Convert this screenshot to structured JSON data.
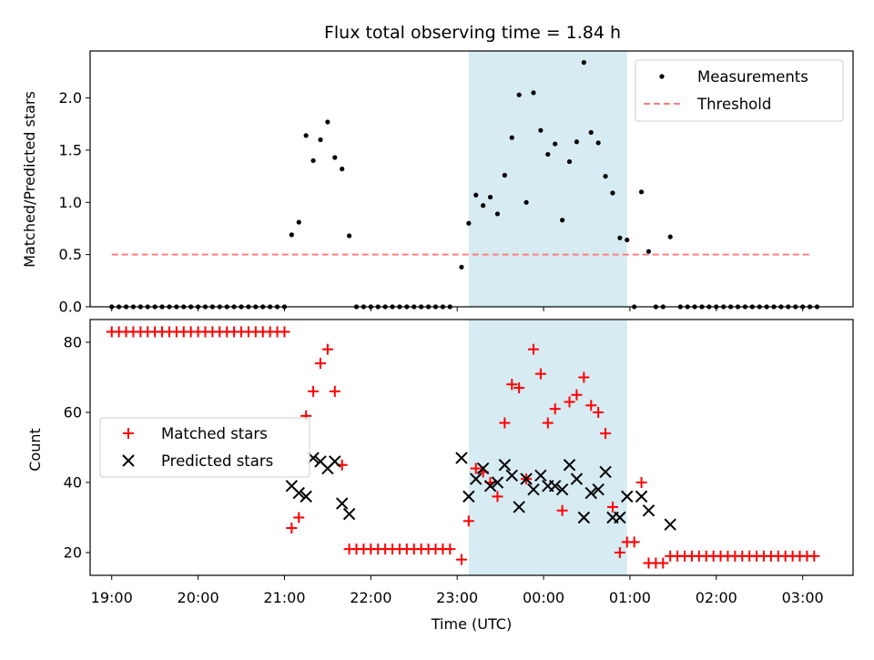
{
  "chart_data": [
    {
      "type": "scatter",
      "title": "Flux total observing time = 1.84 h",
      "xlabel": "",
      "ylabel": "Matched/Predicted stars",
      "ylim": [
        0,
        2.45
      ],
      "xlim": [
        "18:45",
        "03:35"
      ],
      "yticks": [
        "0.0",
        "0.5",
        "1.0",
        "1.5",
        "2.0"
      ],
      "highlight_span": {
        "start": "23:08",
        "end": "00:58",
        "color": "#add8e6"
      },
      "legend": {
        "placement": "top-right",
        "entries": [
          "Measurements",
          "Threshold"
        ]
      },
      "threshold": {
        "name": "Threshold",
        "value": 0.5,
        "x_range": [
          "19:00",
          "03:05"
        ],
        "color": "#ff7f7f",
        "style": "dashed"
      },
      "series": [
        {
          "name": "Measurements",
          "color": "#000000",
          "points": [
            [
              "19:00",
              0
            ],
            [
              "19:05",
              0
            ],
            [
              "19:10",
              0
            ],
            [
              "19:15",
              0
            ],
            [
              "19:20",
              0
            ],
            [
              "19:25",
              0
            ],
            [
              "19:30",
              0
            ],
            [
              "19:35",
              0
            ],
            [
              "19:40",
              0
            ],
            [
              "19:45",
              0
            ],
            [
              "19:50",
              0
            ],
            [
              "19:55",
              0
            ],
            [
              "20:00",
              0
            ],
            [
              "20:05",
              0
            ],
            [
              "20:10",
              0
            ],
            [
              "20:15",
              0
            ],
            [
              "20:20",
              0
            ],
            [
              "20:25",
              0
            ],
            [
              "20:30",
              0
            ],
            [
              "20:35",
              0
            ],
            [
              "20:40",
              0
            ],
            [
              "20:45",
              0
            ],
            [
              "20:50",
              0
            ],
            [
              "20:55",
              0
            ],
            [
              "21:00",
              0
            ],
            [
              "21:05",
              0.69
            ],
            [
              "21:10",
              0.81
            ],
            [
              "21:15",
              1.64
            ],
            [
              "21:20",
              1.4
            ],
            [
              "21:25",
              1.6
            ],
            [
              "21:30",
              1.77
            ],
            [
              "21:35",
              1.43
            ],
            [
              "21:40",
              1.32
            ],
            [
              "21:45",
              0.68
            ],
            [
              "21:50",
              0
            ],
            [
              "21:55",
              0
            ],
            [
              "22:00",
              0
            ],
            [
              "22:05",
              0
            ],
            [
              "22:10",
              0
            ],
            [
              "22:15",
              0
            ],
            [
              "22:20",
              0
            ],
            [
              "22:25",
              0
            ],
            [
              "22:30",
              0
            ],
            [
              "22:35",
              0
            ],
            [
              "22:40",
              0
            ],
            [
              "22:45",
              0
            ],
            [
              "22:50",
              0
            ],
            [
              "22:55",
              0
            ],
            [
              "23:03",
              0.38
            ],
            [
              "23:08",
              0.8
            ],
            [
              "23:13",
              1.07
            ],
            [
              "23:18",
              0.97
            ],
            [
              "23:23",
              1.05
            ],
            [
              "23:28",
              0.89
            ],
            [
              "23:33",
              1.26
            ],
            [
              "23:38",
              1.62
            ],
            [
              "23:43",
              2.03
            ],
            [
              "23:48",
              1.0
            ],
            [
              "23:53",
              2.05
            ],
            [
              "23:58",
              1.69
            ],
            [
              "00:03",
              1.46
            ],
            [
              "00:08",
              1.56
            ],
            [
              "00:13",
              0.83
            ],
            [
              "00:18",
              1.39
            ],
            [
              "00:23",
              1.58
            ],
            [
              "00:28",
              2.34
            ],
            [
              "00:33",
              1.67
            ],
            [
              "00:38",
              1.57
            ],
            [
              "00:43",
              1.25
            ],
            [
              "00:48",
              1.09
            ],
            [
              "00:53",
              0.66
            ],
            [
              "00:58",
              0.64
            ],
            [
              "01:03",
              0
            ],
            [
              "01:08",
              1.1
            ],
            [
              "01:13",
              0.53
            ],
            [
              "01:18",
              0
            ],
            [
              "01:23",
              0
            ],
            [
              "01:28",
              0.67
            ],
            [
              "01:35",
              0
            ],
            [
              "01:40",
              0
            ],
            [
              "01:45",
              0
            ],
            [
              "01:50",
              0
            ],
            [
              "01:55",
              0
            ],
            [
              "02:00",
              0
            ],
            [
              "02:05",
              0
            ],
            [
              "02:10",
              0
            ],
            [
              "02:15",
              0
            ],
            [
              "02:20",
              0
            ],
            [
              "02:25",
              0
            ],
            [
              "02:30",
              0
            ],
            [
              "02:35",
              0
            ],
            [
              "02:40",
              0
            ],
            [
              "02:45",
              0
            ],
            [
              "02:50",
              0
            ],
            [
              "02:55",
              0
            ],
            [
              "03:00",
              0
            ],
            [
              "03:05",
              0
            ],
            [
              "03:10",
              0
            ]
          ]
        }
      ]
    },
    {
      "type": "scatter",
      "title": "",
      "xlabel": "Time (UTC)",
      "ylabel": "Count",
      "ylim": [
        13.5,
        86.5
      ],
      "xlim": [
        "18:45",
        "03:35"
      ],
      "yticks": [
        "20",
        "40",
        "60",
        "80"
      ],
      "xticks": [
        "19:00",
        "20:00",
        "21:00",
        "22:00",
        "23:00",
        "00:00",
        "01:00",
        "02:00",
        "03:00"
      ],
      "highlight_span": {
        "start": "23:08",
        "end": "00:58",
        "color": "#add8e6"
      },
      "legend": {
        "placement": "center-left",
        "entries": [
          "Matched stars",
          "Predicted stars"
        ]
      },
      "series": [
        {
          "name": "Matched stars",
          "marker": "+",
          "color": "#ff0000",
          "points": [
            [
              "19:00",
              83
            ],
            [
              "19:05",
              83
            ],
            [
              "19:10",
              83
            ],
            [
              "19:15",
              83
            ],
            [
              "19:20",
              83
            ],
            [
              "19:25",
              83
            ],
            [
              "19:30",
              83
            ],
            [
              "19:35",
              83
            ],
            [
              "19:40",
              83
            ],
            [
              "19:45",
              83
            ],
            [
              "19:50",
              83
            ],
            [
              "19:55",
              83
            ],
            [
              "20:00",
              83
            ],
            [
              "20:05",
              83
            ],
            [
              "20:10",
              83
            ],
            [
              "20:15",
              83
            ],
            [
              "20:20",
              83
            ],
            [
              "20:25",
              83
            ],
            [
              "20:30",
              83
            ],
            [
              "20:35",
              83
            ],
            [
              "20:40",
              83
            ],
            [
              "20:45",
              83
            ],
            [
              "20:50",
              83
            ],
            [
              "20:55",
              83
            ],
            [
              "21:00",
              83
            ],
            [
              "21:05",
              27
            ],
            [
              "21:10",
              30
            ],
            [
              "21:15",
              59
            ],
            [
              "21:20",
              66
            ],
            [
              "21:25",
              74
            ],
            [
              "21:30",
              78
            ],
            [
              "21:35",
              66
            ],
            [
              "21:40",
              45
            ],
            [
              "21:45",
              21
            ],
            [
              "21:50",
              21
            ],
            [
              "21:55",
              21
            ],
            [
              "22:00",
              21
            ],
            [
              "22:05",
              21
            ],
            [
              "22:10",
              21
            ],
            [
              "22:15",
              21
            ],
            [
              "22:20",
              21
            ],
            [
              "22:25",
              21
            ],
            [
              "22:30",
              21
            ],
            [
              "22:35",
              21
            ],
            [
              "22:40",
              21
            ],
            [
              "22:45",
              21
            ],
            [
              "22:50",
              21
            ],
            [
              "22:55",
              21
            ],
            [
              "23:03",
              18
            ],
            [
              "23:08",
              29
            ],
            [
              "23:13",
              44
            ],
            [
              "23:18",
              43
            ],
            [
              "23:23",
              40
            ],
            [
              "23:28",
              36
            ],
            [
              "23:33",
              57
            ],
            [
              "23:38",
              68
            ],
            [
              "23:43",
              67
            ],
            [
              "23:48",
              41
            ],
            [
              "23:53",
              78
            ],
            [
              "23:58",
              71
            ],
            [
              "00:03",
              57
            ],
            [
              "00:08",
              61
            ],
            [
              "00:13",
              32
            ],
            [
              "00:18",
              63
            ],
            [
              "00:23",
              65
            ],
            [
              "00:28",
              70
            ],
            [
              "00:33",
              62
            ],
            [
              "00:38",
              60
            ],
            [
              "00:43",
              54
            ],
            [
              "00:48",
              33
            ],
            [
              "00:53",
              20
            ],
            [
              "00:58",
              23
            ],
            [
              "01:03",
              23
            ],
            [
              "01:08",
              40
            ],
            [
              "01:13",
              17
            ],
            [
              "01:18",
              17
            ],
            [
              "01:23",
              17
            ],
            [
              "01:28",
              19
            ],
            [
              "01:33",
              19
            ],
            [
              "01:38",
              19
            ],
            [
              "01:43",
              19
            ],
            [
              "01:48",
              19
            ],
            [
              "01:53",
              19
            ],
            [
              "01:58",
              19
            ],
            [
              "02:03",
              19
            ],
            [
              "02:08",
              19
            ],
            [
              "02:13",
              19
            ],
            [
              "02:18",
              19
            ],
            [
              "02:23",
              19
            ],
            [
              "02:28",
              19
            ],
            [
              "02:33",
              19
            ],
            [
              "02:38",
              19
            ],
            [
              "02:43",
              19
            ],
            [
              "02:48",
              19
            ],
            [
              "02:53",
              19
            ],
            [
              "02:58",
              19
            ],
            [
              "03:03",
              19
            ],
            [
              "03:08",
              19
            ]
          ]
        },
        {
          "name": "Predicted stars",
          "marker": "x",
          "color": "#000000",
          "points": [
            [
              "21:05",
              39
            ],
            [
              "21:10",
              37
            ],
            [
              "21:15",
              36
            ],
            [
              "21:20",
              47
            ],
            [
              "21:25",
              46
            ],
            [
              "21:30",
              44
            ],
            [
              "21:35",
              46
            ],
            [
              "21:40",
              34
            ],
            [
              "21:45",
              31
            ],
            [
              "23:03",
              47
            ],
            [
              "23:08",
              36
            ],
            [
              "23:13",
              41
            ],
            [
              "23:18",
              44
            ],
            [
              "23:23",
              39
            ],
            [
              "23:28",
              40
            ],
            [
              "23:33",
              45
            ],
            [
              "23:38",
              42
            ],
            [
              "23:43",
              33
            ],
            [
              "23:48",
              41
            ],
            [
              "23:53",
              38
            ],
            [
              "23:58",
              42
            ],
            [
              "00:03",
              39
            ],
            [
              "00:08",
              39
            ],
            [
              "00:13",
              38
            ],
            [
              "00:18",
              45
            ],
            [
              "00:23",
              41
            ],
            [
              "00:28",
              30
            ],
            [
              "00:33",
              37
            ],
            [
              "00:38",
              38
            ],
            [
              "00:43",
              43
            ],
            [
              "00:48",
              30
            ],
            [
              "00:53",
              30
            ],
            [
              "00:58",
              36
            ],
            [
              "01:08",
              36
            ],
            [
              "01:13",
              32
            ],
            [
              "01:28",
              28
            ]
          ]
        }
      ]
    }
  ]
}
